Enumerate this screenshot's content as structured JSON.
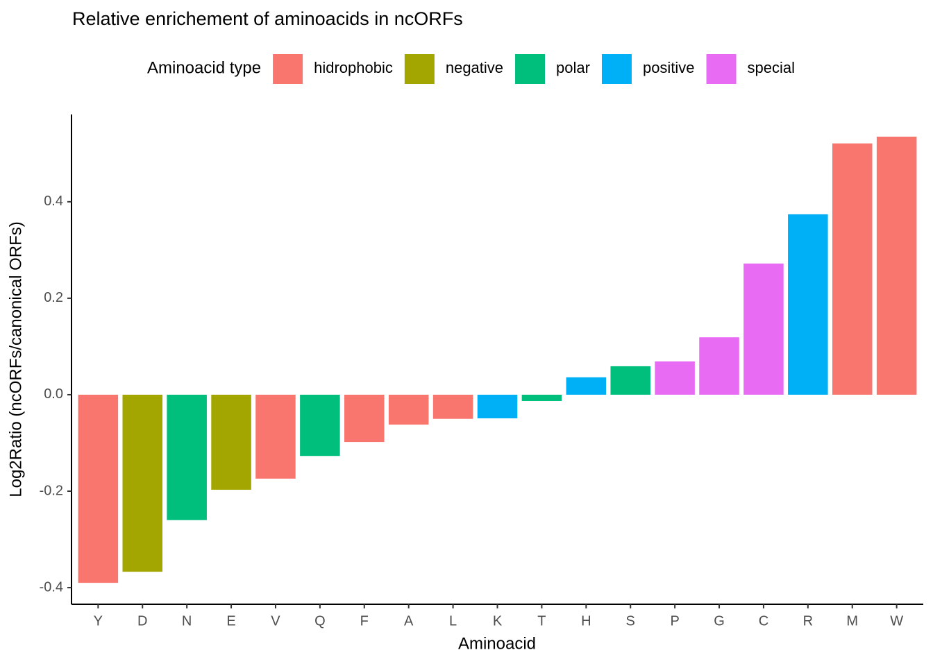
{
  "chart_data": {
    "type": "bar",
    "title": "Relative enrichement of aminoacids in ncORFs",
    "x_label": "Aminoacid",
    "y_label": "Log2Ratio (ncORFs/canonical ORFs)",
    "legend_title": "Aminoacid type",
    "legend_position": "top",
    "categories": [
      "Y",
      "D",
      "N",
      "E",
      "V",
      "Q",
      "F",
      "A",
      "L",
      "K",
      "T",
      "H",
      "S",
      "P",
      "G",
      "C",
      "R",
      "M",
      "W"
    ],
    "series": [
      {
        "name": "hidrophobic",
        "color": "#f8766d",
        "values": [
          -0.39,
          null,
          null,
          null,
          -0.174,
          null,
          -0.098,
          -0.062,
          -0.05,
          null,
          null,
          null,
          null,
          null,
          null,
          null,
          null,
          0.521,
          0.535
        ]
      },
      {
        "name": "negative",
        "color": "#a3a500",
        "values": [
          null,
          -0.367,
          null,
          -0.197,
          null,
          null,
          null,
          null,
          null,
          null,
          null,
          null,
          null,
          null,
          null,
          null,
          null,
          null,
          null
        ]
      },
      {
        "name": "polar",
        "color": "#00bf7d",
        "values": [
          null,
          null,
          -0.26,
          null,
          null,
          -0.127,
          null,
          null,
          null,
          null,
          -0.013,
          null,
          0.059,
          null,
          null,
          null,
          null,
          null,
          null
        ]
      },
      {
        "name": "positive",
        "color": "#00b0f6",
        "values": [
          null,
          null,
          null,
          null,
          null,
          null,
          null,
          null,
          null,
          -0.049,
          null,
          0.036,
          null,
          null,
          null,
          null,
          0.374,
          null,
          null
        ]
      },
      {
        "name": "special",
        "color": "#e76bf3",
        "values": [
          null,
          null,
          null,
          null,
          null,
          null,
          null,
          null,
          null,
          null,
          null,
          null,
          null,
          0.069,
          0.119,
          0.272,
          null,
          null,
          null
        ]
      }
    ],
    "ylim": [
      -0.433,
      0.581
    ],
    "yticks": [
      -0.4,
      -0.2,
      {
        "value": 0,
        "label": "0.0"
      },
      0.2,
      0.4
    ],
    "grid": false
  }
}
